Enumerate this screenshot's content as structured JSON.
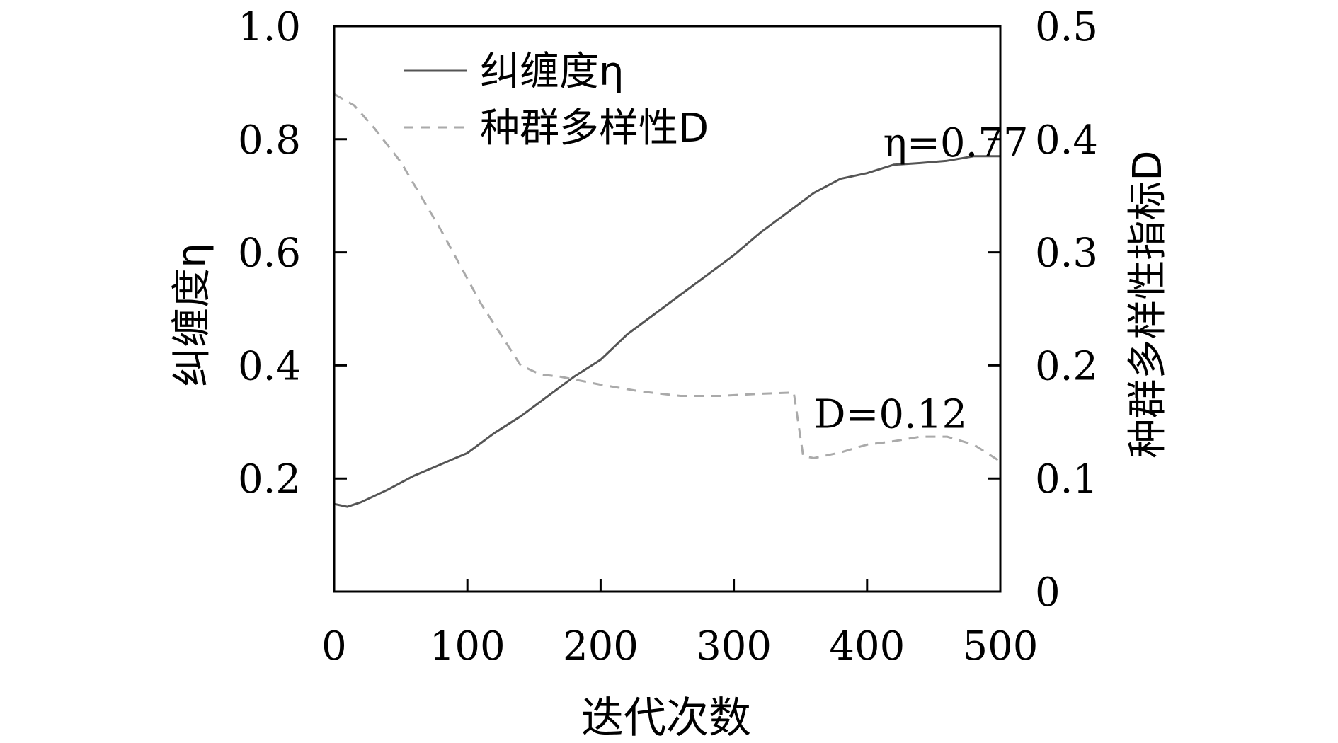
{
  "chart_data": {
    "type": "line",
    "xlabel": "迭代次数",
    "ylabel_left": "纠缠度η",
    "ylabel_right": "种群多样性指标D",
    "xlim": [
      0,
      500
    ],
    "ylim_left": [
      0,
      1.0
    ],
    "ylim_right": [
      0,
      0.5
    ],
    "x_ticks": [
      {
        "value": 0,
        "label": "0"
      },
      {
        "value": 100,
        "label": "100"
      },
      {
        "value": 200,
        "label": "200"
      },
      {
        "value": 300,
        "label": "300"
      },
      {
        "value": 400,
        "label": "400"
      },
      {
        "value": 500,
        "label": "500"
      }
    ],
    "y_ticks_left": [
      {
        "value": 0.2,
        "label": "0.2"
      },
      {
        "value": 0.4,
        "label": "0.4"
      },
      {
        "value": 0.6,
        "label": "0.6"
      },
      {
        "value": 0.8,
        "label": "0.8"
      },
      {
        "value": 1.0,
        "label": "1.0"
      }
    ],
    "y_ticks_right": [
      {
        "value": 0,
        "label": "0"
      },
      {
        "value": 0.1,
        "label": "0.1"
      },
      {
        "value": 0.2,
        "label": "0.2"
      },
      {
        "value": 0.3,
        "label": "0.3"
      },
      {
        "value": 0.4,
        "label": "0.4"
      },
      {
        "value": 0.5,
        "label": "0.5"
      }
    ],
    "grid": false,
    "legend_position": "top-left",
    "series": [
      {
        "name": "纠缠度η",
        "axis": "left",
        "style": "solid",
        "color": "#555555",
        "x": [
          0,
          10,
          20,
          40,
          60,
          80,
          100,
          120,
          140,
          160,
          180,
          200,
          220,
          240,
          260,
          280,
          300,
          320,
          340,
          360,
          380,
          400,
          420,
          440,
          460,
          480,
          500
        ],
        "y": [
          0.155,
          0.15,
          0.158,
          0.18,
          0.205,
          0.225,
          0.245,
          0.28,
          0.31,
          0.345,
          0.38,
          0.41,
          0.455,
          0.49,
          0.525,
          0.56,
          0.595,
          0.635,
          0.67,
          0.705,
          0.73,
          0.74,
          0.755,
          0.758,
          0.762,
          0.77,
          0.77
        ]
      },
      {
        "name": "种群多样性D",
        "axis": "right",
        "style": "dashed",
        "color": "#aaaaaa",
        "x": [
          0,
          15,
          30,
          50,
          80,
          110,
          140,
          155,
          170,
          200,
          230,
          260,
          290,
          320,
          345,
          352,
          360,
          380,
          400,
          420,
          440,
          460,
          480,
          500
        ],
        "y": [
          0.44,
          0.43,
          0.41,
          0.38,
          0.32,
          0.255,
          0.2,
          0.192,
          0.19,
          0.183,
          0.177,
          0.173,
          0.173,
          0.175,
          0.176,
          0.12,
          0.118,
          0.123,
          0.13,
          0.133,
          0.137,
          0.137,
          0.13,
          0.115
        ]
      }
    ],
    "annotations": [
      {
        "text": "η=0.77",
        "x": 420,
        "y_left": 0.795
      },
      {
        "text": "D=0.12",
        "x": 368,
        "y_left": 0.315
      }
    ]
  },
  "legend": {
    "entries": [
      "纠缠度η",
      "种群多样性D"
    ]
  }
}
